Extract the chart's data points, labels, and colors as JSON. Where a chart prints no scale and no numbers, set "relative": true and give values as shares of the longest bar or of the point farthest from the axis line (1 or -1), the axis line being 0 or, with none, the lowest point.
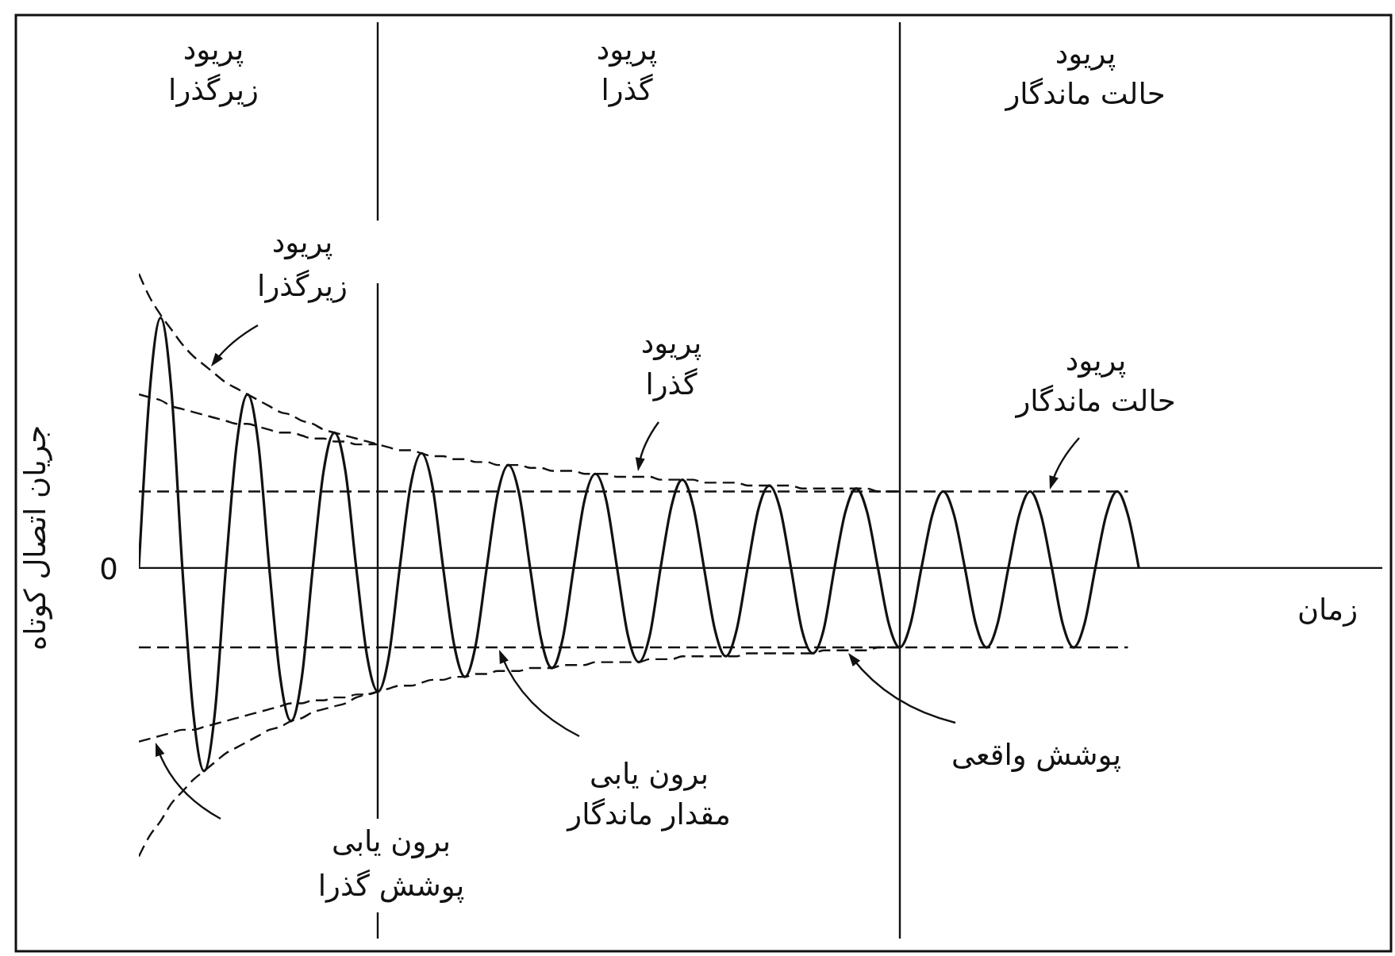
{
  "chart_data": {
    "type": "line",
    "relative": true,
    "categories": [
      null,
      null,
      null,
      null,
      null,
      null,
      null,
      null,
      null,
      null,
      null,
      null,
      null,
      null,
      null,
      null,
      null,
      null,
      null,
      null,
      null,
      null,
      null,
      null,
      null,
      null,
      null,
      null,
      null,
      null,
      null,
      null,
      null,
      null,
      null,
      null,
      null,
      null,
      null,
      null,
      null,
      null,
      null,
      null,
      null,
      null,
      null,
      null,
      null,
      null,
      null,
      null,
      null,
      null,
      null,
      null,
      null,
      null,
      null,
      null,
      null,
      null,
      null,
      null,
      null,
      null,
      null,
      null,
      null,
      null,
      null,
      null,
      null,
      null,
      null,
      null,
      null,
      null,
      null,
      null,
      null,
      null,
      null,
      null,
      null,
      null,
      null,
      null,
      null,
      null,
      null,
      null,
      null
    ],
    "ylabel": "جریان اتصال کوتاه",
    "series": [
      {
        "color": "#111111",
        "line_style": "solid",
        "values": [
          0,
          0.6,
          0.85,
          0.6,
          0,
          -0.49,
          -0.69,
          -0.49,
          0,
          0.42,
          0.59,
          0.42,
          0,
          -0.37,
          -0.52,
          -0.37,
          0,
          0.33,
          0.46,
          0.33,
          0,
          -0.3,
          -0.42,
          -0.3,
          0,
          0.28,
          0.39,
          0.28,
          0,
          -0.26,
          -0.37,
          -0.26,
          0,
          0.25,
          0.35,
          0.25,
          0,
          -0.24,
          -0.34,
          -0.24,
          0,
          0.23,
          0.32,
          0.23,
          0,
          -0.23,
          -0.32,
          -0.23,
          0,
          0.21,
          0.3,
          0.21,
          0,
          -0.21,
          -0.3,
          -0.21,
          0,
          0.2,
          0.28,
          0.2,
          0,
          -0.21,
          -0.29,
          -0.21,
          0,
          0.19,
          0.27,
          0.19,
          0,
          -0.19,
          -0.27,
          -0.19,
          0,
          0.18,
          0.26,
          0.18,
          0,
          -0.19,
          -0.27,
          -0.19,
          0,
          0.18,
          0.26,
          0.18,
          0,
          -0.19,
          -0.27,
          -0.19,
          0,
          0.18,
          0.26,
          0.18,
          0
        ]
      },
      {
        "color": "#111111",
        "line_style": "dashed",
        "values": [
          1,
          0.92,
          0.86,
          0.81,
          0.76,
          0.72,
          0.69,
          0.66,
          0.63,
          0.61,
          0.59,
          0.57,
          0.55,
          0.53,
          0.52,
          0.5,
          0.49,
          0.47,
          0.46,
          0.45,
          0.44,
          0.43,
          0.42,
          0.41,
          0.4,
          0.4,
          0.39,
          0.38,
          0.38,
          0.37,
          0.37,
          0.36,
          0.36,
          0.35,
          0.35,
          0.35,
          0.34,
          0.34,
          0.33,
          0.33,
          0.33,
          0.32,
          0.32,
          0.32,
          0.31,
          0.31,
          0.31,
          0.31,
          0.3,
          0.3,
          0.3,
          0.3,
          0.29,
          0.29,
          0.29,
          0.29,
          0.28,
          0.28,
          0.28,
          0.28,
          0.28,
          0.27,
          0.27,
          0.27,
          0.27,
          0.27,
          0.27,
          0.27,
          0.26,
          0.26,
          0.26,
          null,
          null,
          null,
          null,
          null,
          null,
          null,
          null,
          null,
          null,
          null,
          null,
          null,
          null,
          null,
          null,
          null,
          null,
          null,
          null,
          null,
          null
        ]
      },
      {
        "color": "#111111",
        "line_style": "dashed",
        "values": [
          0.59,
          0.58,
          0.57,
          0.55,
          0.54,
          0.53,
          0.52,
          0.51,
          0.5,
          0.49,
          0.49,
          0.48,
          0.47,
          0.46,
          0.46,
          0.45,
          0.44,
          0.44,
          0.43,
          0.43,
          0.42,
          0.42,
          0.42,
          null,
          null,
          null,
          null,
          null,
          null,
          null,
          null,
          null,
          null,
          null,
          null,
          null,
          null,
          null,
          null,
          null,
          null,
          null,
          null,
          null,
          null,
          null,
          null,
          null,
          null,
          null,
          null,
          null,
          null,
          null,
          null,
          null,
          null,
          null,
          null,
          null,
          null,
          null,
          null,
          null,
          null,
          null,
          null,
          null,
          null,
          null,
          null,
          null,
          null,
          null,
          null,
          null,
          null,
          null,
          null,
          null,
          null,
          null,
          null,
          null,
          null,
          null,
          null,
          null,
          null,
          null,
          null,
          null,
          null
        ]
      },
      {
        "color": "#111111",
        "line_style": "dashed",
        "values": [
          0.26,
          0.26,
          0.26,
          0.26,
          0.26,
          0.26,
          0.26,
          0.26,
          0.26,
          0.26,
          0.26,
          0.26,
          0.26,
          0.26,
          0.26,
          0.26,
          0.26,
          0.26,
          0.26,
          0.26,
          0.26,
          0.26,
          0.26,
          0.26,
          0.26,
          0.26,
          0.26,
          0.26,
          0.26,
          0.26,
          0.26,
          0.26,
          0.26,
          0.26,
          0.26,
          0.26,
          0.26,
          0.26,
          0.26,
          0.26,
          0.26,
          0.26,
          0.26,
          0.26,
          0.26,
          0.26,
          0.26,
          0.26,
          0.26,
          0.26,
          0.26,
          0.26,
          0.26,
          0.26,
          0.26,
          0.26,
          0.26,
          0.26,
          0.26,
          0.26,
          0.26,
          0.26,
          0.26,
          0.26,
          0.26,
          0.26,
          0.26,
          0.26,
          0.26,
          0.26,
          0.26,
          0.26,
          0.26,
          0.26,
          0.26,
          0.26,
          0.26,
          0.26,
          0.26,
          0.26,
          0.26,
          0.26,
          0.26,
          0.26,
          0.26,
          0.26,
          0.26,
          0.26,
          0.26,
          0.26,
          0.26,
          0.26,
          null
        ]
      },
      {
        "color": "#111111",
        "line_style": "dashed",
        "values": [
          -0.27,
          -0.27,
          -0.27,
          -0.27,
          -0.27,
          -0.27,
          -0.27,
          -0.27,
          -0.27,
          -0.27,
          -0.27,
          -0.27,
          -0.27,
          -0.27,
          -0.27,
          -0.27,
          -0.27,
          -0.27,
          -0.27,
          -0.27,
          -0.27,
          -0.27,
          -0.27,
          -0.27,
          -0.27,
          -0.27,
          -0.27,
          -0.27,
          -0.27,
          -0.27,
          -0.27,
          -0.27,
          -0.27,
          -0.27,
          -0.27,
          -0.27,
          -0.27,
          -0.27,
          -0.27,
          -0.27,
          -0.27,
          -0.27,
          -0.27,
          -0.27,
          -0.27,
          -0.27,
          -0.27,
          -0.27,
          -0.27,
          -0.27,
          -0.27,
          -0.27,
          -0.27,
          -0.27,
          -0.27,
          -0.27,
          -0.27,
          -0.27,
          -0.27,
          -0.27,
          -0.27,
          -0.27,
          -0.27,
          -0.27,
          -0.27,
          -0.27,
          -0.27,
          -0.27,
          -0.27,
          -0.27,
          -0.27,
          -0.27,
          -0.27,
          -0.27,
          -0.27,
          -0.27,
          -0.27,
          -0.27,
          -0.27,
          -0.27,
          -0.27,
          -0.27,
          -0.27,
          -0.27,
          -0.27,
          -0.27,
          -0.27,
          -0.27,
          -0.27,
          -0.27,
          -0.27,
          -0.27,
          null
        ]
      },
      {
        "color": "#111111",
        "line_style": "dashed",
        "values": [
          -0.98,
          -0.91,
          -0.86,
          -0.8,
          -0.76,
          -0.72,
          -0.69,
          -0.66,
          -0.63,
          -0.61,
          -0.59,
          -0.57,
          -0.55,
          -0.54,
          -0.52,
          -0.51,
          -0.49,
          -0.48,
          -0.47,
          -0.46,
          -0.44,
          -0.43,
          -0.42,
          -0.41,
          -0.4,
          -0.4,
          -0.39,
          -0.38,
          -0.38,
          -0.37,
          -0.37,
          -0.36,
          -0.36,
          -0.35,
          -0.35,
          -0.35,
          -0.34,
          -0.34,
          -0.34,
          -0.33,
          -0.33,
          -0.33,
          -0.32,
          -0.32,
          -0.32,
          -0.32,
          -0.32,
          -0.31,
          -0.31,
          -0.31,
          -0.3,
          -0.3,
          -0.3,
          -0.3,
          -0.3,
          -0.3,
          -0.29,
          -0.29,
          -0.29,
          -0.29,
          -0.29,
          -0.29,
          -0.29,
          -0.28,
          -0.28,
          -0.28,
          -0.28,
          -0.28,
          -0.27,
          -0.27,
          -0.27,
          null,
          null,
          null,
          null,
          null,
          null,
          null,
          null,
          null,
          null,
          null,
          null,
          null,
          null,
          null,
          null,
          null,
          null,
          null,
          null,
          null,
          null
        ]
      },
      {
        "color": "#111111",
        "line_style": "dashed",
        "values": [
          -0.59,
          -0.58,
          -0.57,
          -0.56,
          -0.55,
          -0.55,
          -0.54,
          -0.53,
          -0.52,
          -0.51,
          -0.5,
          -0.49,
          -0.48,
          -0.47,
          -0.46,
          -0.46,
          -0.45,
          -0.45,
          -0.44,
          -0.44,
          -0.43,
          -0.43,
          -0.42,
          null,
          null,
          null,
          null,
          null,
          null,
          null,
          null,
          null,
          null,
          null,
          null,
          null,
          null,
          null,
          null,
          null,
          null,
          null,
          null,
          null,
          null,
          null,
          null,
          null,
          null,
          null,
          null,
          null,
          null,
          null,
          null,
          null,
          null,
          null,
          null,
          null,
          null,
          null,
          null,
          null,
          null,
          null,
          null,
          null,
          null,
          null,
          null,
          null,
          null,
          null,
          null,
          null,
          null,
          null,
          null,
          null,
          null,
          null,
          null,
          null,
          null,
          null,
          null,
          null,
          null,
          null,
          null,
          null,
          null
        ]
      }
    ],
    "annotations": [
      "پریود\nزیرگذرا",
      "پریود\nگذرا",
      "پریود\nحالت ماندگار",
      "پریود\nزیرگذرا",
      "پریود\nگذرا",
      "پریود\nحالت ماندگار",
      "0",
      "پوشش واقعی",
      "برون یابی\nمقدار ماندگار",
      "برون یابی\nپوشش گذرا",
      "زمان"
    ]
  }
}
